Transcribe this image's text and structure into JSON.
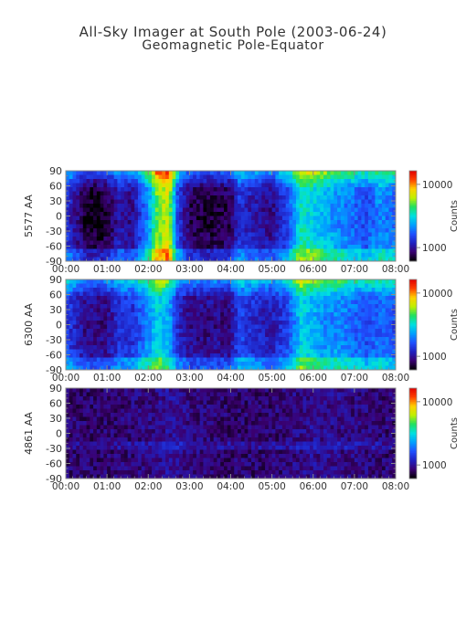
{
  "title": "All-Sky Imager at South Pole (2003-06-24)",
  "subtitle": "Geomagnetic Pole-Equator",
  "chart_data": [
    {
      "type": "heatmap",
      "ylabel": "5577 AA",
      "colorbar_label": "Counts",
      "colorbar_ticks": [
        "10000",
        "1000"
      ],
      "xticks": [
        "00:00",
        "01:00",
        "02:00",
        "03:00",
        "04:00",
        "05:00",
        "06:00",
        "07:00",
        "08:00"
      ],
      "yticks": [
        "90",
        "60",
        "30",
        "0",
        "-30",
        "-60",
        "-90"
      ],
      "xlim": [
        "00:00",
        "08:00"
      ],
      "ylim": [
        -90,
        90
      ],
      "intensity_profile_time_h": [
        0.0,
        0.15,
        0.5,
        1.0,
        1.3,
        1.6,
        2.0,
        2.2,
        2.5,
        2.7,
        3.0,
        3.5,
        4.0,
        4.2,
        4.5,
        5.0,
        5.4,
        5.7,
        6.0,
        6.3,
        6.6,
        7.0,
        7.3,
        7.6,
        8.0
      ],
      "intensity_profile_level": [
        0.3,
        0.25,
        0.1,
        0.12,
        0.25,
        0.2,
        0.45,
        0.7,
        0.8,
        0.35,
        0.15,
        0.12,
        0.15,
        0.3,
        0.25,
        0.2,
        0.35,
        0.6,
        0.55,
        0.5,
        0.45,
        0.4,
        0.35,
        0.45,
        0.4
      ]
    },
    {
      "type": "heatmap",
      "ylabel": "6300 AA",
      "colorbar_label": "Counts",
      "colorbar_ticks": [
        "10000",
        "1000"
      ],
      "xticks": [
        "00:00",
        "01:00",
        "02:00",
        "03:00",
        "04:00",
        "05:00",
        "06:00",
        "07:00",
        "08:00"
      ],
      "yticks": [
        "90",
        "60",
        "30",
        "0",
        "-30",
        "-60",
        "-90"
      ],
      "xlim": [
        "00:00",
        "08:00"
      ],
      "ylim": [
        -90,
        90
      ],
      "intensity_profile_time_h": [
        0.0,
        0.15,
        0.5,
        1.0,
        1.3,
        1.6,
        2.0,
        2.2,
        2.5,
        2.7,
        3.0,
        3.5,
        4.0,
        4.2,
        4.5,
        5.0,
        5.4,
        5.7,
        6.0,
        6.3,
        6.6,
        7.0,
        7.3,
        7.6,
        8.0
      ],
      "intensity_profile_level": [
        0.35,
        0.3,
        0.2,
        0.2,
        0.3,
        0.3,
        0.45,
        0.55,
        0.5,
        0.3,
        0.2,
        0.2,
        0.2,
        0.35,
        0.3,
        0.25,
        0.35,
        0.55,
        0.5,
        0.45,
        0.45,
        0.4,
        0.35,
        0.4,
        0.35
      ]
    },
    {
      "type": "heatmap",
      "ylabel": "4861 AA",
      "colorbar_label": "Counts",
      "colorbar_ticks": [
        "10000",
        "1000"
      ],
      "xticks": [
        "00:00",
        "01:00",
        "02:00",
        "03:00",
        "04:00",
        "05:00",
        "06:00",
        "07:00",
        "08:00"
      ],
      "yticks": [
        "90",
        "60",
        "30",
        "0",
        "-30",
        "-60",
        "-90"
      ],
      "xlim": [
        "00:00",
        "08:00"
      ],
      "ylim": [
        -90,
        90
      ],
      "intensity_profile_time_h": [
        0.0,
        1.0,
        2.0,
        2.5,
        3.0,
        4.0,
        5.0,
        6.0,
        7.0,
        8.0
      ],
      "intensity_profile_level": [
        0.1,
        0.1,
        0.12,
        0.15,
        0.12,
        0.1,
        0.1,
        0.14,
        0.12,
        0.1
      ]
    }
  ],
  "colors": {
    "colormap": [
      "#000000",
      "#3a0070",
      "#2020c0",
      "#2050ff",
      "#00a0ff",
      "#00e0e0",
      "#20e060",
      "#c0f000",
      "#ffd000",
      "#ff4000",
      "#e00000"
    ],
    "axis": "#888888",
    "text": "#333333"
  }
}
